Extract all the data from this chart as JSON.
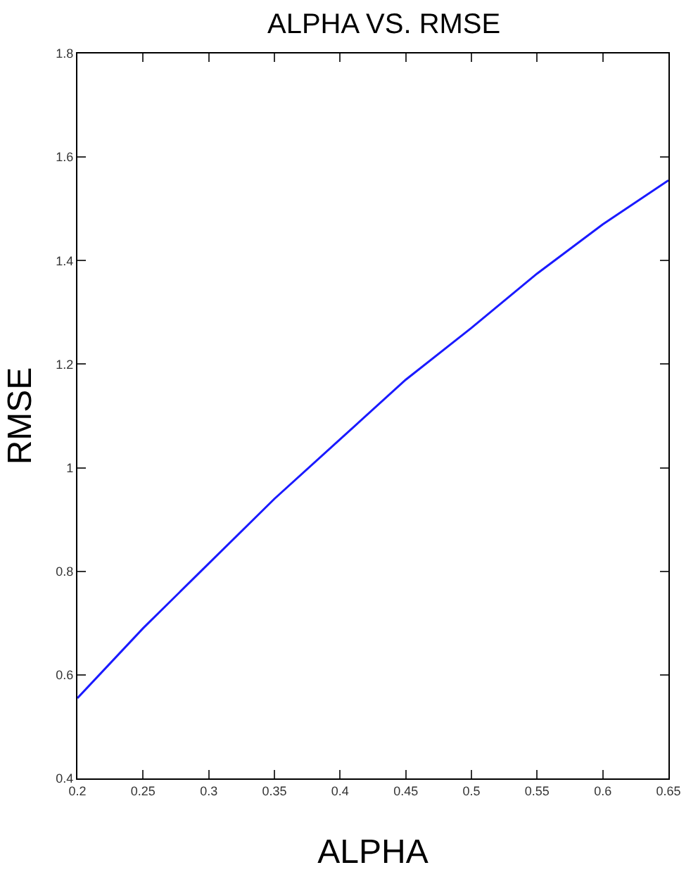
{
  "chart_data": {
    "type": "line",
    "title": "ALPHA VS. RMSE",
    "xlabel": "ALPHA",
    "ylabel": "RMSE",
    "x": [
      0.2,
      0.25,
      0.3,
      0.35,
      0.4,
      0.45,
      0.5,
      0.55,
      0.6,
      0.65
    ],
    "series": [
      {
        "color": "#1a1aff",
        "values": [
          0.555,
          0.69,
          0.815,
          0.94,
          1.055,
          1.17,
          1.27,
          1.375,
          1.47,
          1.555
        ]
      }
    ],
    "xlim": [
      0.2,
      0.65
    ],
    "xticks": [
      0.2,
      0.25,
      0.3,
      0.35,
      0.4,
      0.45,
      0.5,
      0.55,
      0.6,
      0.65
    ],
    "ylim": [
      0.4,
      1.8
    ],
    "yticks": [
      0.4,
      0.6,
      0.8,
      1,
      1.2,
      1.4,
      1.6,
      1.8
    ],
    "marker": "none",
    "line_style": "solid"
  }
}
